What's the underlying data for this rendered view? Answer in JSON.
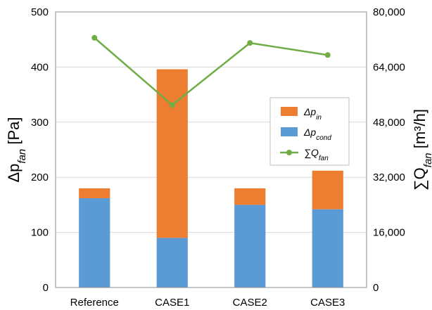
{
  "chart_data": {
    "type": "bar",
    "stacked": true,
    "categories": [
      "Reference",
      "CASE1",
      "CASE2",
      "CASE3"
    ],
    "series": [
      {
        "name": "Δp_cond",
        "axis": "left",
        "color": "#5b9bd5",
        "values": [
          162,
          90,
          150,
          142
        ]
      },
      {
        "name": "Δp_in",
        "axis": "left",
        "color": "#ed7d31",
        "values": [
          18,
          306,
          30,
          70
        ]
      },
      {
        "name": "∑Q_fan",
        "axis": "right",
        "type": "line",
        "color": "#70ad47",
        "values": [
          72500,
          53000,
          71000,
          67500
        ]
      }
    ],
    "ylabel_left": "Δp_fan [Pa]",
    "ylabel_right": "∑Q_fan [m³/h]",
    "ylim_left": [
      0,
      500
    ],
    "ylim_right": [
      0,
      80000
    ],
    "yticks_left": [
      "0",
      "100",
      "200",
      "300",
      "400",
      "500"
    ],
    "yticks_right": [
      "0",
      "16,000",
      "32,000",
      "48,000",
      "64,000",
      "80,000"
    ],
    "grid": true,
    "legend_position": "right-center"
  }
}
